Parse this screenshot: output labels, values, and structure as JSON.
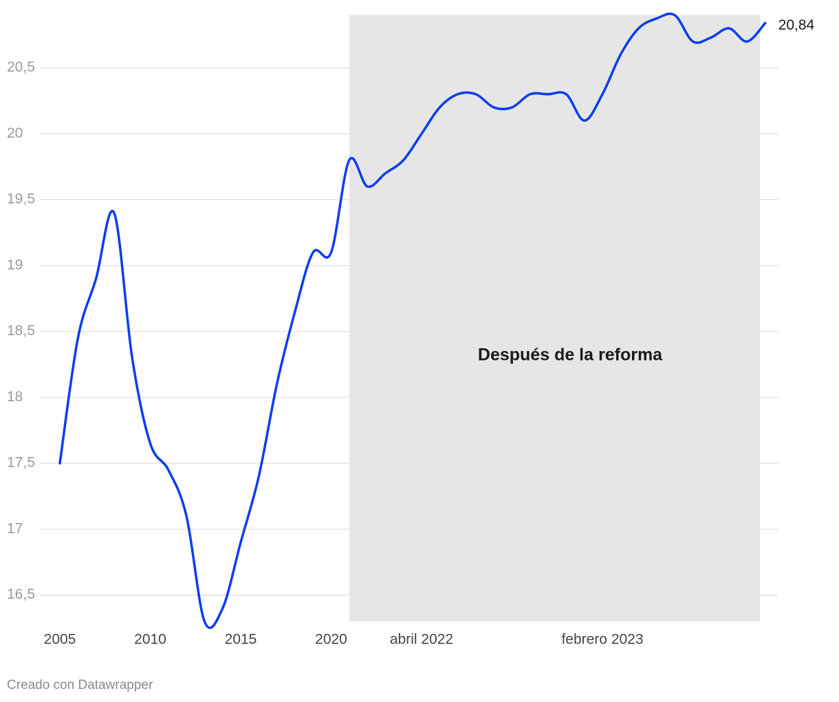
{
  "chart_data": {
    "type": "line",
    "categories": [
      "2005",
      null,
      null,
      null,
      null,
      "2010",
      null,
      null,
      null,
      null,
      "2015",
      null,
      null,
      null,
      null,
      "2020",
      null,
      null,
      null,
      null,
      "abril 2022",
      null,
      null,
      null,
      null,
      null,
      null,
      null,
      null,
      null,
      "febrero 2023",
      null,
      null,
      null,
      null,
      null,
      null,
      null,
      null,
      null
    ],
    "series": [
      {
        "name": null,
        "color": "#0a3cf0",
        "values": [
          17.5,
          18.45,
          18.9,
          19.4,
          18.3,
          17.65,
          17.45,
          17.1,
          16.3,
          16.4,
          16.9,
          17.4,
          18.1,
          18.65,
          19.1,
          19.1,
          19.8,
          19.6,
          19.7,
          19.8,
          20.0,
          20.2,
          20.3,
          20.3,
          20.2,
          20.2,
          20.3,
          20.3,
          20.3,
          20.1,
          20.3,
          20.6,
          20.8,
          20.875,
          20.9,
          20.7,
          20.73,
          20.8,
          20.7,
          20.84
        ],
        "value_labels": [
          null,
          null,
          null,
          null,
          null,
          null,
          null,
          null,
          null,
          null,
          null,
          null,
          null,
          null,
          null,
          null,
          null,
          null,
          null,
          null,
          null,
          null,
          null,
          null,
          null,
          null,
          null,
          null,
          null,
          null,
          null,
          null,
          null,
          null,
          null,
          null,
          null,
          null,
          null,
          "20,84"
        ]
      }
    ],
    "ylim": [
      16.3,
      20.9
    ],
    "yticks": [
      {
        "value": 16.5,
        "label": "16,5"
      },
      17,
      {
        "value": 17.5,
        "label": "17,5"
      },
      18,
      {
        "value": 18.5,
        "label": "18,5"
      },
      19,
      {
        "value": 19.5,
        "label": "19,5"
      },
      20,
      {
        "value": 20.5,
        "label": "20,5"
      }
    ],
    "grid": true,
    "annotation": "Después de la reforma",
    "credit": "Creado con Datawrapper"
  }
}
